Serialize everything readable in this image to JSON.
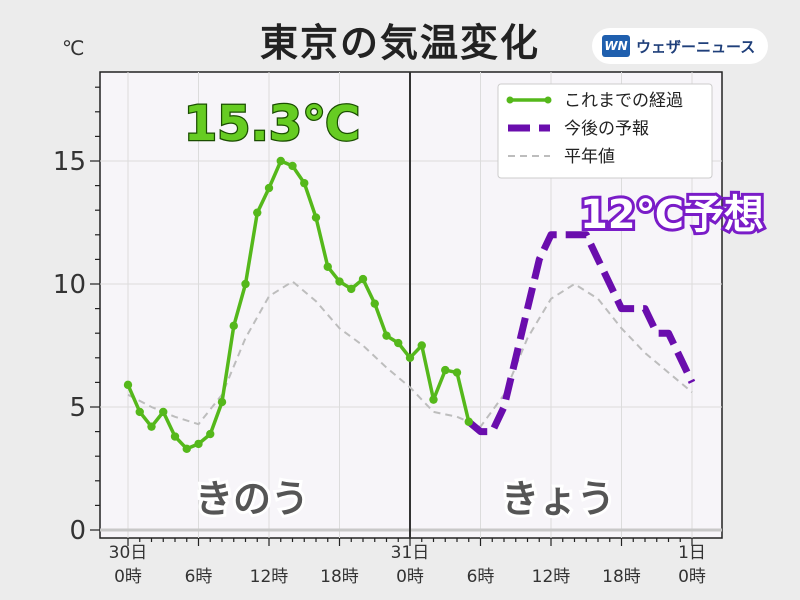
{
  "title": "東京の気温変化",
  "unit": "℃",
  "brand": {
    "logo": "WN",
    "name": "ウェザーニュース"
  },
  "colors": {
    "observed": "#55b81b",
    "forecast": "#6a0dad",
    "normal": "#bdbdbd",
    "highlight_text_observed": "#66cc22",
    "highlight_text_forecast": "#7a1cc8"
  },
  "annotations": {
    "yesterday_high": "15.3℃",
    "today_high": "12℃予想",
    "yesterday": "きのう",
    "today": "きょう"
  },
  "chart_data": {
    "type": "line",
    "title": "東京の気温変化",
    "ylabel": "℃",
    "ylim": [
      0,
      18
    ],
    "yticks": [
      0,
      5,
      10,
      15
    ],
    "xlim": [
      -1,
      49
    ],
    "grid": true,
    "legend_position": "top-right",
    "xticks": [
      {
        "x": 0,
        "label": [
          "30日",
          "0時"
        ]
      },
      {
        "x": 6,
        "label": [
          "",
          "6時"
        ]
      },
      {
        "x": 12,
        "label": [
          "",
          "12時"
        ]
      },
      {
        "x": 18,
        "label": [
          "",
          "18時"
        ]
      },
      {
        "x": 24,
        "label": [
          "31日",
          "0時"
        ]
      },
      {
        "x": 30,
        "label": [
          "",
          "6時"
        ]
      },
      {
        "x": 36,
        "label": [
          "",
          "12時"
        ]
      },
      {
        "x": 42,
        "label": [
          "",
          "18時"
        ]
      },
      {
        "x": 48,
        "label": [
          "1日",
          "0時"
        ]
      }
    ],
    "series": [
      {
        "name": "これまでの経過",
        "style": "solid-markers",
        "x": [
          0,
          1,
          2,
          3,
          4,
          5,
          6,
          7,
          8,
          9,
          10,
          11,
          12,
          13,
          14,
          15,
          16,
          17,
          18,
          19,
          20,
          21,
          22,
          23,
          24,
          25,
          26,
          27,
          28,
          29
        ],
        "y": [
          5.9,
          4.8,
          4.2,
          4.8,
          3.8,
          3.3,
          3.5,
          3.9,
          5.2,
          8.3,
          10.0,
          12.9,
          13.9,
          15.0,
          14.8,
          14.1,
          12.7,
          10.7,
          10.1,
          9.8,
          10.2,
          9.2,
          7.9,
          7.6,
          7.0,
          7.5,
          5.3,
          6.5,
          6.4,
          4.4
        ]
      },
      {
        "name": "今後の予報",
        "style": "dashed-thick",
        "x": [
          29,
          30,
          31,
          32,
          33,
          34,
          35,
          36,
          37,
          38,
          39,
          40,
          41,
          42,
          43,
          44,
          45,
          46,
          47,
          48
        ],
        "y": [
          4.4,
          4.0,
          4.0,
          5.0,
          7.0,
          9.0,
          11.0,
          12.0,
          12.0,
          12.0,
          12.0,
          11.0,
          10.0,
          9.0,
          9.0,
          9.0,
          8.0,
          8.0,
          7.0,
          6.0
        ]
      },
      {
        "name": "平年値",
        "style": "dashed-thin",
        "x": [
          0,
          2,
          4,
          6,
          8,
          10,
          12,
          14,
          16,
          18,
          20,
          22,
          24,
          26,
          28,
          30,
          32,
          34,
          36,
          38,
          40,
          42,
          44,
          46,
          48
        ],
        "y": [
          5.5,
          5.0,
          4.6,
          4.3,
          5.5,
          7.8,
          9.5,
          10.1,
          9.3,
          8.2,
          7.5,
          6.6,
          5.8,
          4.8,
          4.6,
          4.2,
          5.5,
          7.8,
          9.4,
          10.0,
          9.4,
          8.2,
          7.2,
          6.4,
          5.6
        ]
      }
    ]
  }
}
